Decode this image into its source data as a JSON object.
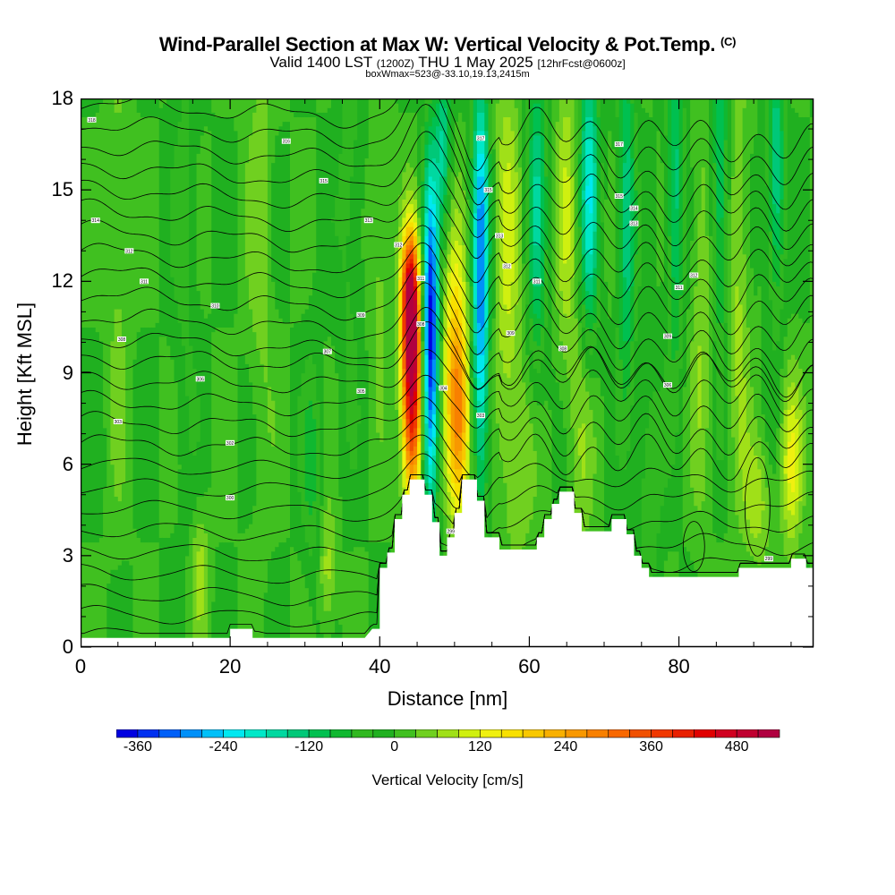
{
  "header": {
    "title_main": "Wind-Parallel Section at Max W: Vertical Velocity & Pot.Temp.",
    "title_mark": "(C)",
    "valid_prefix": "Valid 1400 LST",
    "valid_utc": "(1200Z)",
    "valid_date": "THU 1 May 2025",
    "forecast_info": "[12hrFcst@0600z]",
    "box_info": "boxWmax=523@-33.10,19.13,2415m"
  },
  "chart_data": {
    "type": "heatmap",
    "title": "Wind-Parallel Section at Max W: Vertical Velocity & Pot.Temp.",
    "xlabel": "Distance [nm]",
    "ylabel": "Height [Kft MSL]",
    "xlim": [
      0,
      98
    ],
    "ylim": [
      0,
      18
    ],
    "xticks": [
      0,
      20,
      40,
      60,
      80
    ],
    "xtick_labels": [
      "0",
      "20",
      "40",
      "60",
      "80"
    ],
    "yticks": [
      0,
      3,
      6,
      9,
      12,
      15,
      18
    ],
    "ytick_labels": [
      "0",
      "3",
      "6",
      "9",
      "12",
      "15",
      "18"
    ],
    "colorbar": {
      "label": "Vertical Velocity [cm/s]",
      "levels": [
        -390,
        -360,
        -330,
        -300,
        -270,
        -240,
        -210,
        -180,
        -150,
        -120,
        -90,
        -60,
        -30,
        0,
        30,
        60,
        90,
        120,
        150,
        180,
        210,
        240,
        270,
        300,
        330,
        360,
        390,
        420,
        450,
        480,
        510,
        540
      ],
      "colors": [
        "#0000e0",
        "#0030f0",
        "#0060f8",
        "#0090f8",
        "#00c0f8",
        "#00e8f0",
        "#00e8c8",
        "#00d8a0",
        "#00c878",
        "#00c050",
        "#10b830",
        "#30b820",
        "#20b020",
        "#40c020",
        "#70d020",
        "#a0e018",
        "#d0f010",
        "#f0f010",
        "#f8e000",
        "#f8c800",
        "#f8b000",
        "#f89800",
        "#f88000",
        "#f86800",
        "#f05000",
        "#f03800",
        "#e82000",
        "#e00000",
        "#d00020",
        "#c00030",
        "#b00040"
      ],
      "tick_values": [
        -360,
        -240,
        -120,
        0,
        120,
        240,
        360,
        480
      ],
      "tick_labels": [
        "-360",
        "-240",
        "-120",
        "0",
        "120",
        "240",
        "360",
        "480"
      ]
    },
    "terrain_kft": [
      [
        0,
        0.3
      ],
      [
        5,
        0.3
      ],
      [
        10,
        0.3
      ],
      [
        15,
        0.3
      ],
      [
        20,
        0.3
      ],
      [
        20,
        0.6
      ],
      [
        23,
        0.6
      ],
      [
        23,
        0.3
      ],
      [
        30,
        0.3
      ],
      [
        38,
        0.3
      ],
      [
        39,
        0.6
      ],
      [
        40,
        0.6
      ],
      [
        40,
        2.6
      ],
      [
        41,
        2.6
      ],
      [
        41,
        3.1
      ],
      [
        42,
        3.1
      ],
      [
        42,
        4.2
      ],
      [
        43,
        4.2
      ],
      [
        43,
        5.0
      ],
      [
        44,
        5.0
      ],
      [
        44,
        5.5
      ],
      [
        46,
        5.5
      ],
      [
        46,
        5.0
      ],
      [
        47,
        5.0
      ],
      [
        47,
        4.1
      ],
      [
        48,
        4.1
      ],
      [
        48,
        3.0
      ],
      [
        49,
        3.0
      ],
      [
        49,
        3.6
      ],
      [
        50,
        3.6
      ],
      [
        50,
        4.4
      ],
      [
        51,
        4.4
      ],
      [
        51,
        5.5
      ],
      [
        53,
        5.5
      ],
      [
        53,
        4.8
      ],
      [
        54,
        4.8
      ],
      [
        54,
        3.6
      ],
      [
        56,
        3.6
      ],
      [
        56,
        3.2
      ],
      [
        61,
        3.2
      ],
      [
        61,
        3.6
      ],
      [
        62,
        3.6
      ],
      [
        62,
        4.2
      ],
      [
        63,
        4.2
      ],
      [
        63,
        4.7
      ],
      [
        64,
        4.7
      ],
      [
        64,
        5.1
      ],
      [
        66,
        5.1
      ],
      [
        66,
        4.4
      ],
      [
        67,
        4.4
      ],
      [
        67,
        3.8
      ],
      [
        71,
        3.8
      ],
      [
        71,
        4.2
      ],
      [
        73,
        4.2
      ],
      [
        73,
        3.7
      ],
      [
        74,
        3.7
      ],
      [
        74,
        3.0
      ],
      [
        75,
        3.0
      ],
      [
        75,
        2.6
      ],
      [
        76,
        2.6
      ],
      [
        76,
        2.3
      ],
      [
        88,
        2.3
      ],
      [
        88,
        2.6
      ],
      [
        95,
        2.6
      ],
      [
        95,
        2.9
      ],
      [
        97,
        2.9
      ],
      [
        97,
        2.6
      ],
      [
        98,
        2.6
      ]
    ],
    "w_features": [
      {
        "x": 44.3,
        "z": 8.8,
        "sx": 0.9,
        "sz": 2.6,
        "w": 520
      },
      {
        "x": 44.0,
        "z": 11.5,
        "sx": 0.8,
        "sz": 1.4,
        "w": 320
      },
      {
        "x": 46.8,
        "z": 10.0,
        "sx": 0.75,
        "sz": 4.0,
        "w": -390
      },
      {
        "x": 50.5,
        "z": 7.2,
        "sx": 1.1,
        "sz": 2.2,
        "w": 260
      },
      {
        "x": 50.0,
        "z": 10.5,
        "sx": 1.2,
        "sz": 2.5,
        "w": 130
      },
      {
        "x": 53.5,
        "z": 12.0,
        "sx": 0.8,
        "sz": 5.0,
        "w": -300
      },
      {
        "x": 48.5,
        "z": 16.5,
        "sx": 0.7,
        "sz": 2.0,
        "w": -150
      },
      {
        "x": 57.0,
        "z": 13.0,
        "sx": 1.2,
        "sz": 5.0,
        "w": 90
      },
      {
        "x": 61.0,
        "z": 14.5,
        "sx": 0.9,
        "sz": 4.0,
        "w": -140
      },
      {
        "x": 65.0,
        "z": 14.5,
        "sx": 1.0,
        "sz": 4.0,
        "w": 80
      },
      {
        "x": 68.0,
        "z": 15.0,
        "sx": 0.9,
        "sz": 3.5,
        "w": -200
      },
      {
        "x": 73.0,
        "z": 14.0,
        "sx": 0.8,
        "sz": 4.0,
        "w": -150
      },
      {
        "x": 79.5,
        "z": 15.0,
        "sx": 0.8,
        "sz": 4.0,
        "w": -140
      },
      {
        "x": 85.5,
        "z": 15.0,
        "sx": 0.8,
        "sz": 4.0,
        "w": -130
      },
      {
        "x": 93.0,
        "z": 15.5,
        "sx": 0.8,
        "sz": 3.0,
        "w": -160
      },
      {
        "x": 83.0,
        "z": 11.5,
        "sx": 1.0,
        "sz": 5.0,
        "w": 60
      },
      {
        "x": 88.0,
        "z": 12.0,
        "sx": 1.0,
        "sz": 5.0,
        "w": 70
      },
      {
        "x": 95.0,
        "z": 6.0,
        "sx": 1.0,
        "sz": 2.0,
        "w": 120
      },
      {
        "x": 90.5,
        "z": 4.8,
        "sx": 1.2,
        "sz": 1.5,
        "w": 80
      },
      {
        "x": 31.0,
        "z": 6.0,
        "sx": 1.0,
        "sz": 2.5,
        "w": -70
      },
      {
        "x": 33.0,
        "z": 2.5,
        "sx": 0.8,
        "sz": 1.5,
        "w": 80
      },
      {
        "x": 16.0,
        "z": 2.5,
        "sx": 0.8,
        "sz": 1.5,
        "w": 70
      },
      {
        "x": 5.0,
        "z": 13.0,
        "sx": 1.0,
        "sz": 6.0,
        "w": 40
      },
      {
        "x": 14.0,
        "z": 14.0,
        "sx": 1.2,
        "sz": 6.0,
        "w": -40
      },
      {
        "x": 24.0,
        "z": 14.0,
        "sx": 1.2,
        "sz": 6.0,
        "w": 45
      },
      {
        "x": 36.0,
        "z": 15.0,
        "sx": 1.2,
        "sz": 5.0,
        "w": -50
      },
      {
        "x": 40.0,
        "z": 13.0,
        "sx": 1.0,
        "sz": 3.0,
        "w": 50
      },
      {
        "x": 59.0,
        "z": 6.0,
        "sx": 1.5,
        "sz": 2.5,
        "w": 50
      },
      {
        "x": 67.0,
        "z": 7.0,
        "sx": 1.2,
        "sz": 3.0,
        "w": 55
      },
      {
        "x": 76.0,
        "z": 5.5,
        "sx": 1.2,
        "sz": 3.0,
        "w": -60
      }
    ],
    "theta_contours": {
      "base_value": 293,
      "interval": 1,
      "labels": [
        {
          "x": 1.5,
          "z": 17.3,
          "text": "318"
        },
        {
          "x": 27.5,
          "z": 16.6,
          "text": "316"
        },
        {
          "x": 32.5,
          "z": 15.3,
          "text": "315"
        },
        {
          "x": 2.0,
          "z": 14.0,
          "text": "314"
        },
        {
          "x": 38.5,
          "z": 14.0,
          "text": "313"
        },
        {
          "x": 6.5,
          "z": 13.0,
          "text": "312"
        },
        {
          "x": 42.5,
          "z": 13.2,
          "text": "312"
        },
        {
          "x": 8.5,
          "z": 12.0,
          "text": "311"
        },
        {
          "x": 45.5,
          "z": 12.1,
          "text": "311"
        },
        {
          "x": 18.0,
          "z": 11.2,
          "text": "310"
        },
        {
          "x": 37.5,
          "z": 10.9,
          "text": "309"
        },
        {
          "x": 45.5,
          "z": 10.6,
          "text": "308"
        },
        {
          "x": 5.5,
          "z": 10.1,
          "text": "308"
        },
        {
          "x": 33.0,
          "z": 9.7,
          "text": "307"
        },
        {
          "x": 16.0,
          "z": 8.8,
          "text": "306"
        },
        {
          "x": 37.5,
          "z": 8.4,
          "text": "305"
        },
        {
          "x": 48.5,
          "z": 8.5,
          "text": "304"
        },
        {
          "x": 5.0,
          "z": 7.4,
          "text": "303"
        },
        {
          "x": 20.0,
          "z": 6.7,
          "text": "302"
        },
        {
          "x": 20.0,
          "z": 4.9,
          "text": "300"
        },
        {
          "x": 53.5,
          "z": 7.6,
          "text": "303"
        },
        {
          "x": 49.5,
          "z": 3.8,
          "text": "299"
        },
        {
          "x": 53.5,
          "z": 16.7,
          "text": "317"
        },
        {
          "x": 54.5,
          "z": 15.0,
          "text": "315"
        },
        {
          "x": 56.0,
          "z": 13.5,
          "text": "313"
        },
        {
          "x": 57.0,
          "z": 12.5,
          "text": "312"
        },
        {
          "x": 61.0,
          "z": 12.0,
          "text": "311"
        },
        {
          "x": 57.5,
          "z": 10.3,
          "text": "309"
        },
        {
          "x": 64.5,
          "z": 9.8,
          "text": "308"
        },
        {
          "x": 72.0,
          "z": 16.5,
          "text": "317"
        },
        {
          "x": 72.0,
          "z": 14.8,
          "text": "315"
        },
        {
          "x": 74.0,
          "z": 14.4,
          "text": "314"
        },
        {
          "x": 74.0,
          "z": 13.9,
          "text": "313"
        },
        {
          "x": 82.0,
          "z": 12.2,
          "text": "312"
        },
        {
          "x": 80.0,
          "z": 11.8,
          "text": "311"
        },
        {
          "x": 78.5,
          "z": 10.2,
          "text": "309"
        },
        {
          "x": 78.5,
          "z": 8.6,
          "text": "306"
        },
        {
          "x": 92.0,
          "z": 2.9,
          "text": "299"
        }
      ]
    }
  }
}
